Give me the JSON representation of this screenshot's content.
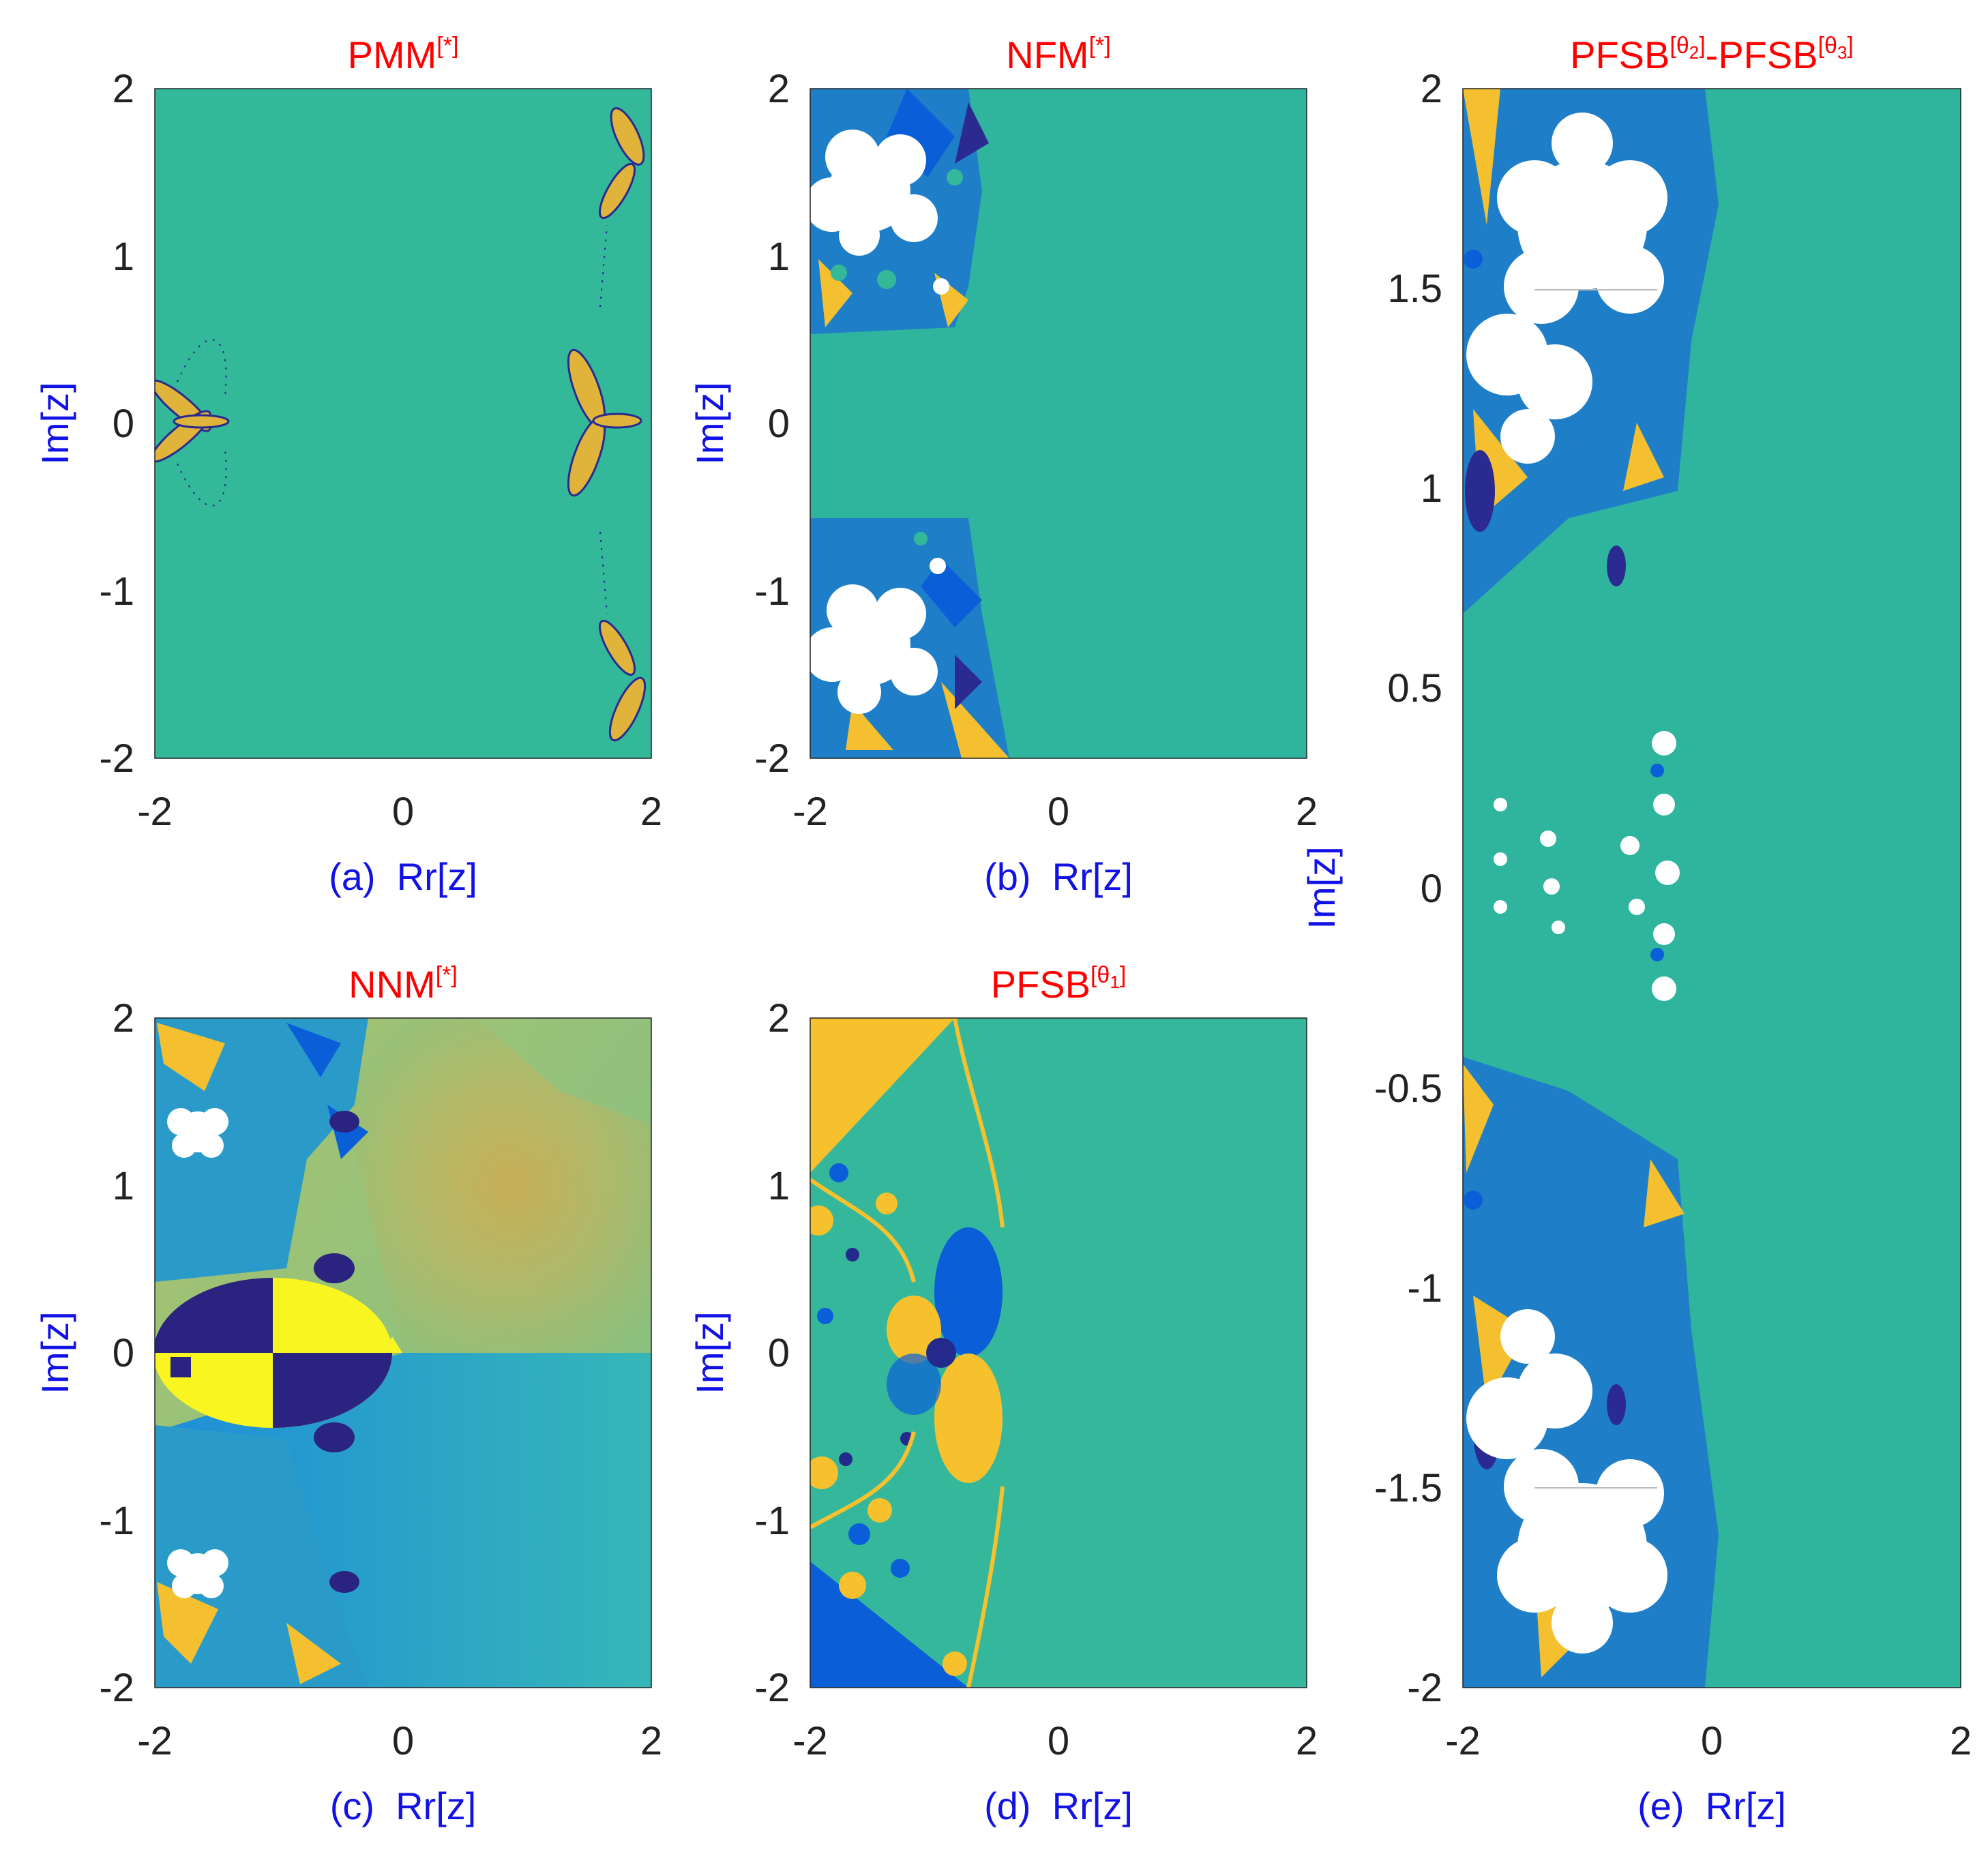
{
  "figure": {
    "panels": [
      {
        "id": "a",
        "title_base": "PMM",
        "title_sup": "[*]",
        "caption": "(a)  Rr[z]",
        "ylabel": "Im[z]",
        "xticks": [
          "-2",
          "0",
          "2"
        ],
        "yticks": [
          "2",
          "1",
          "0",
          "-1",
          "-2"
        ],
        "background": "#34b89a",
        "dominant_color": "#34b89a"
      },
      {
        "id": "b",
        "title_base": "NFM",
        "title_sup": "[*]",
        "caption": "(b)  Rr[z]",
        "ylabel": "Im[z]",
        "xticks": [
          "-2",
          "0",
          "2"
        ],
        "yticks": [
          "2",
          "1",
          "0",
          "-1",
          "-2"
        ],
        "background": "#2fb59e"
      },
      {
        "id": "c",
        "title_base": "NNM",
        "title_sup": "[*]",
        "caption": "(c)  Rr[z]",
        "ylabel": "Im[z]",
        "xticks": [
          "-2",
          "0",
          "2"
        ],
        "yticks": [
          "2",
          "1",
          "0",
          "-1",
          "-2"
        ],
        "background": "#8fc07a"
      },
      {
        "id": "d",
        "title_base": "PFSB",
        "title_sup": "[θ",
        "title_sup_sub": "1",
        "title_sup_end": "]",
        "caption": "(d)  Rr[z]",
        "ylabel": "Im[z]",
        "xticks": [
          "-2",
          "0",
          "2"
        ],
        "yticks": [
          "2",
          "1",
          "0",
          "-1",
          "-2"
        ],
        "background": "#35b79c"
      },
      {
        "id": "e",
        "title_part1_base": "PFSB",
        "title_part1_sup": "[θ",
        "title_part1_sub": "2",
        "title_part1_end": "]",
        "title_sep": "-PFSB",
        "title_part2_sup": "[θ",
        "title_part2_sub": "3",
        "title_part2_end": "]",
        "caption": "(e)  Rr[z]",
        "ylabel": "Im[z]",
        "xticks": [
          "-2",
          "0",
          "2"
        ],
        "yticks": [
          "2",
          "1.5",
          "1",
          "0.5",
          "0",
          "-0.5",
          "-1",
          "-1.5",
          "-2"
        ],
        "background": "#2fb59e"
      }
    ]
  },
  "chart_data": [
    {
      "type": "heatmap",
      "title": "PMM[*]",
      "xlabel": "(a)  Rr[z]",
      "ylabel": "Im[z]",
      "xlim": [
        -2,
        2
      ],
      "ylim": [
        -2,
        2
      ],
      "xticks": [
        -2,
        0,
        2
      ],
      "yticks": [
        -2,
        -1,
        0,
        1,
        2
      ],
      "description_colors": [
        "#34b89a",
        "#f5c030",
        "#2a2a90"
      ]
    },
    {
      "type": "heatmap",
      "title": "NFM[*]",
      "xlabel": "(b)  Rr[z]",
      "ylabel": "Im[z]",
      "xlim": [
        -2,
        2
      ],
      "ylim": [
        -2,
        2
      ],
      "xticks": [
        -2,
        0,
        2
      ],
      "yticks": [
        -2,
        -1,
        0,
        1,
        2
      ],
      "description_colors": [
        "#2fb59e",
        "#f5c030",
        "#0a5fd8",
        "#ffffff"
      ]
    },
    {
      "type": "heatmap",
      "title": "NNM[*]",
      "xlabel": "(c)  Rr[z]",
      "ylabel": "Im[z]",
      "xlim": [
        -2,
        2
      ],
      "ylim": [
        -2,
        2
      ],
      "xticks": [
        -2,
        0,
        2
      ],
      "yticks": [
        -2,
        -1,
        0,
        1,
        2
      ],
      "description_colors": [
        "#a4c176",
        "#2aa6d0",
        "#f8f520",
        "#2a2380"
      ]
    },
    {
      "type": "heatmap",
      "title": "PFSB[θ1]",
      "xlabel": "(d)  Rr[z]",
      "ylabel": "Im[z]",
      "xlim": [
        -2,
        2
      ],
      "ylim": [
        -2,
        2
      ],
      "xticks": [
        -2,
        0,
        2
      ],
      "yticks": [
        -2,
        -1,
        0,
        1,
        2
      ],
      "description_colors": [
        "#35b79c",
        "#f7c12e",
        "#0a5fd8",
        "#232a8c"
      ]
    },
    {
      "type": "heatmap",
      "title": "PFSB[θ2]-PFSB[θ3]",
      "xlabel": "(e)  Rr[z]",
      "ylabel": "Im[z]",
      "xlim": [
        -2,
        2
      ],
      "ylim": [
        -2,
        2
      ],
      "xticks": [
        -2,
        0,
        2
      ],
      "yticks": [
        -2,
        -1.5,
        -1,
        -0.5,
        0,
        0.5,
        1,
        1.5,
        2
      ],
      "description_colors": [
        "#2fb59e",
        "#f5c030",
        "#0a5fd8",
        "#ffffff"
      ]
    }
  ]
}
